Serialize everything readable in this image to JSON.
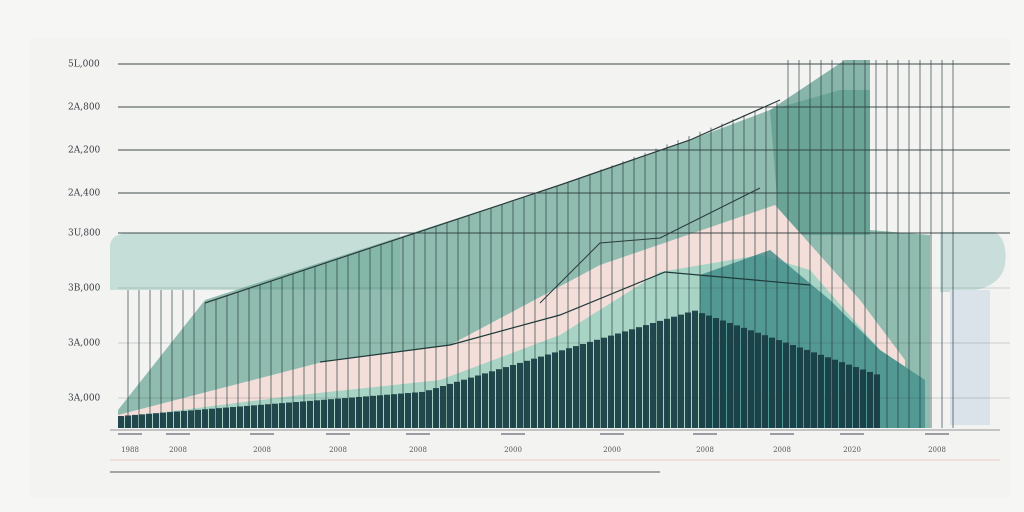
{
  "y_labels": [
    "5L,000",
    "2A,800",
    "2A,200",
    "2A,400",
    "3U,800",
    "3B,000",
    "3A,000",
    "3A,000"
  ],
  "x_labels": [
    "1988",
    "2008",
    "2008",
    "2008",
    "2008",
    "2000",
    "2000",
    "2008",
    "2008",
    "2020",
    "2008"
  ]
}
